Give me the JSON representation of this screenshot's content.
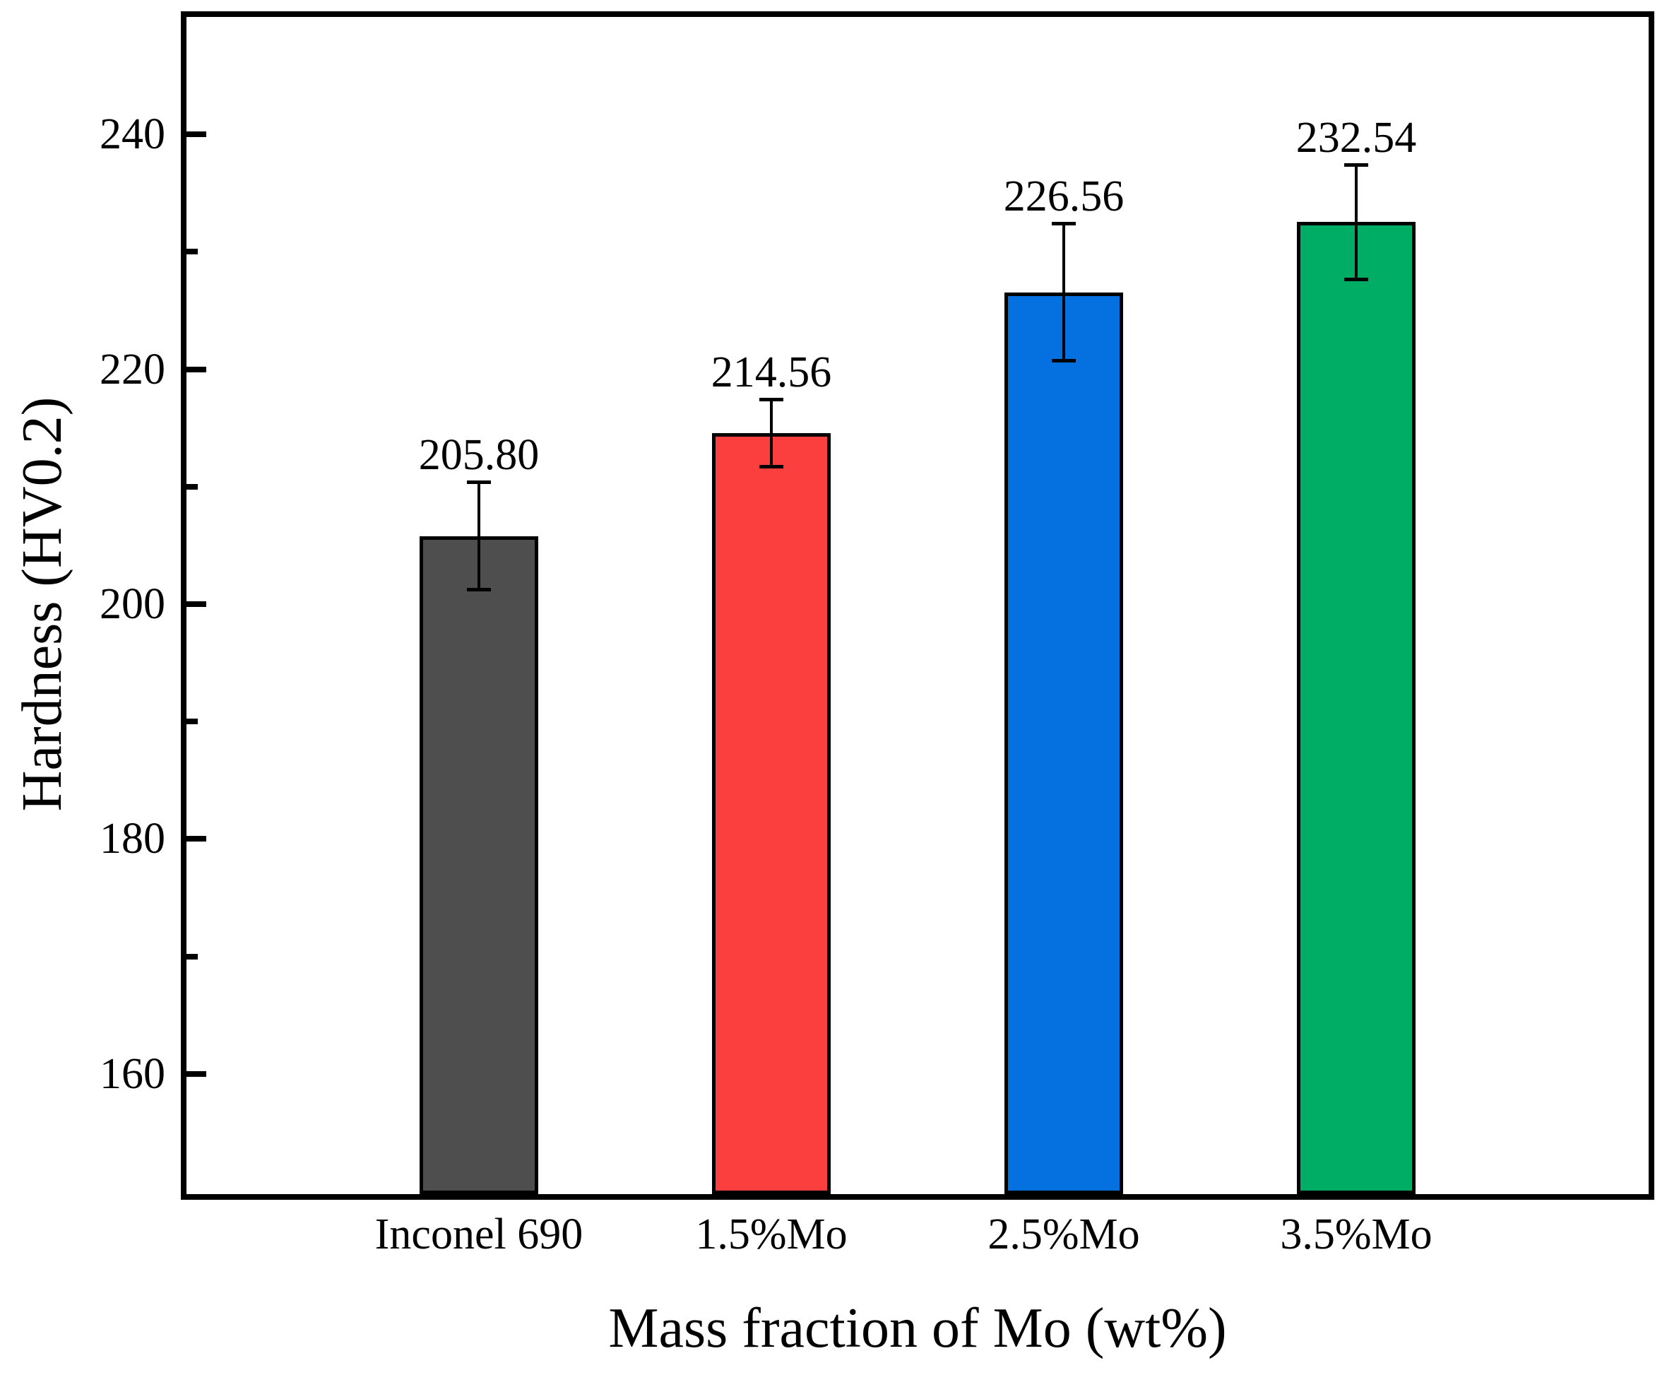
{
  "chart_data": {
    "type": "bar",
    "title": "",
    "xlabel": "Mass fraction of Mo (wt%)",
    "ylabel": "Hardness (HV0.2)",
    "categories": [
      "Inconel 690",
      "1.5%Mo",
      "2.5%Mo",
      "3.5%Mo"
    ],
    "values": [
      205.8,
      214.56,
      226.56,
      232.54
    ],
    "value_labels": [
      "205.80",
      "214.56",
      "226.56",
      "232.54"
    ],
    "errors": [
      4.6,
      2.9,
      5.85,
      4.9
    ],
    "bar_colors": [
      "#4E4E4E",
      "#FB3E3E",
      "#0571E0",
      "#00AD64"
    ],
    "bar_edge_color": "#000000",
    "axis_color": "#000000",
    "background_color": "#FFFFFF",
    "ylim": [
      150,
      250
    ],
    "yticks": [
      160,
      180,
      200,
      220,
      240
    ],
    "ytick_labels": [
      "160",
      "180",
      "200",
      "220",
      "240"
    ],
    "minor_yticks": [
      170,
      190,
      210,
      230
    ],
    "grid": false,
    "legend": null,
    "error_bar_style": "capped, symmetric, drawn through bar fill"
  }
}
